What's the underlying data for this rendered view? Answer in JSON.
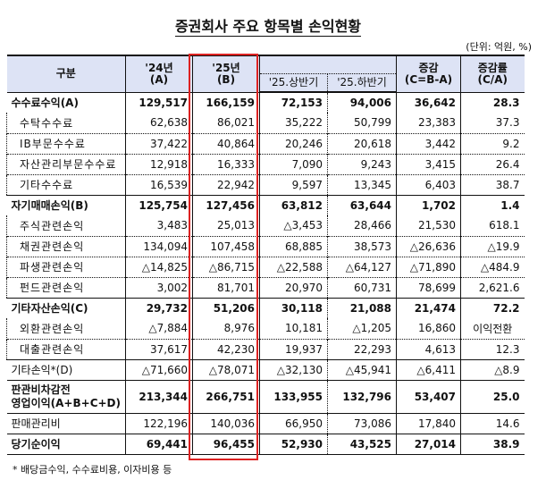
{
  "title": "증권회사 주요 항목별 손익현황",
  "unit": "(단위: 억원, %)",
  "header": {
    "category": "구분",
    "a": [
      "'24년",
      "(A)"
    ],
    "b": [
      "'25년",
      "(B)"
    ],
    "h1": "'25.상반기",
    "h2": "'25.하반기",
    "c": [
      "증감",
      "(C=B-A)"
    ],
    "rate": [
      "증감률",
      "(C/A)"
    ]
  },
  "rows": [
    {
      "type": "main",
      "label": "수수료수익(A)",
      "v": [
        "129,517",
        "166,159",
        "72,153",
        "94,006",
        "36,642",
        "28.3"
      ]
    },
    {
      "type": "sub",
      "label": "수탁수수료",
      "v": [
        "62,638",
        "86,021",
        "35,222",
        "50,799",
        "23,383",
        "37.3"
      ]
    },
    {
      "type": "sub",
      "label": "IB부문수수료",
      "v": [
        "37,422",
        "40,864",
        "20,246",
        "20,618",
        "3,442",
        "9.2"
      ]
    },
    {
      "type": "sub",
      "label": "자산관리부문수수료",
      "v": [
        "12,918",
        "16,333",
        "7,090",
        "9,243",
        "3,415",
        "26.4"
      ]
    },
    {
      "type": "sub",
      "label": "기타수수료",
      "v": [
        "16,539",
        "22,942",
        "9,597",
        "13,345",
        "6,403",
        "38.7"
      ]
    },
    {
      "type": "main",
      "label": "자기매매손익(B)",
      "v": [
        "125,754",
        "127,456",
        "63,812",
        "63,644",
        "1,702",
        "1.4"
      ]
    },
    {
      "type": "sub",
      "label": "주식관련손익",
      "v": [
        "3,483",
        "25,013",
        "△3,453",
        "28,466",
        "21,530",
        "618.1"
      ]
    },
    {
      "type": "sub",
      "label": "채권관련손익",
      "v": [
        "134,094",
        "107,458",
        "68,885",
        "38,573",
        "△26,636",
        "△19.9"
      ]
    },
    {
      "type": "sub",
      "label": "파생관련손익",
      "v": [
        "△14,825",
        "△86,715",
        "△22,588",
        "△64,127",
        "△71,890",
        "△484.9"
      ]
    },
    {
      "type": "sub",
      "label": "펀드관련손익",
      "v": [
        "3,002",
        "81,701",
        "20,970",
        "60,731",
        "78,699",
        "2,621.6"
      ]
    },
    {
      "type": "main",
      "label": "기타자산손익(C)",
      "v": [
        "29,732",
        "51,206",
        "30,118",
        "21,088",
        "21,474",
        "72.2"
      ]
    },
    {
      "type": "sub",
      "label": "외환관련손익",
      "v": [
        "△7,884",
        "8,976",
        "10,181",
        "△1,205",
        "16,860",
        "이익전환"
      ]
    },
    {
      "type": "sub",
      "label": "대출관련손익",
      "v": [
        "37,617",
        "42,230",
        "19,937",
        "22,293",
        "4,613",
        "12.3"
      ]
    },
    {
      "type": "plain",
      "label": "기타손익*(D)",
      "v": [
        "△71,660",
        "△78,071",
        "△32,130",
        "△45,941",
        "△6,411",
        "△8.9"
      ]
    },
    {
      "type": "main",
      "label": "판관비차감전\n영업이익(A+B+C+D)",
      "v": [
        "213,344",
        "266,751",
        "133,955",
        "132,796",
        "53,407",
        "25.0"
      ]
    },
    {
      "type": "plain",
      "label": "판매관리비",
      "v": [
        "122,196",
        "140,036",
        "66,950",
        "73,086",
        "17,840",
        "14.6"
      ]
    },
    {
      "type": "main",
      "label": "당기순이익",
      "v": [
        "69,441",
        "96,455",
        "52,930",
        "43,525",
        "27,014",
        "38.9"
      ]
    }
  ],
  "footnote": "* 배당금수익, 수수료비용, 이자비용 등",
  "colors": {
    "header_bg": "#dde3f5",
    "highlight_box": "#dd2222"
  }
}
